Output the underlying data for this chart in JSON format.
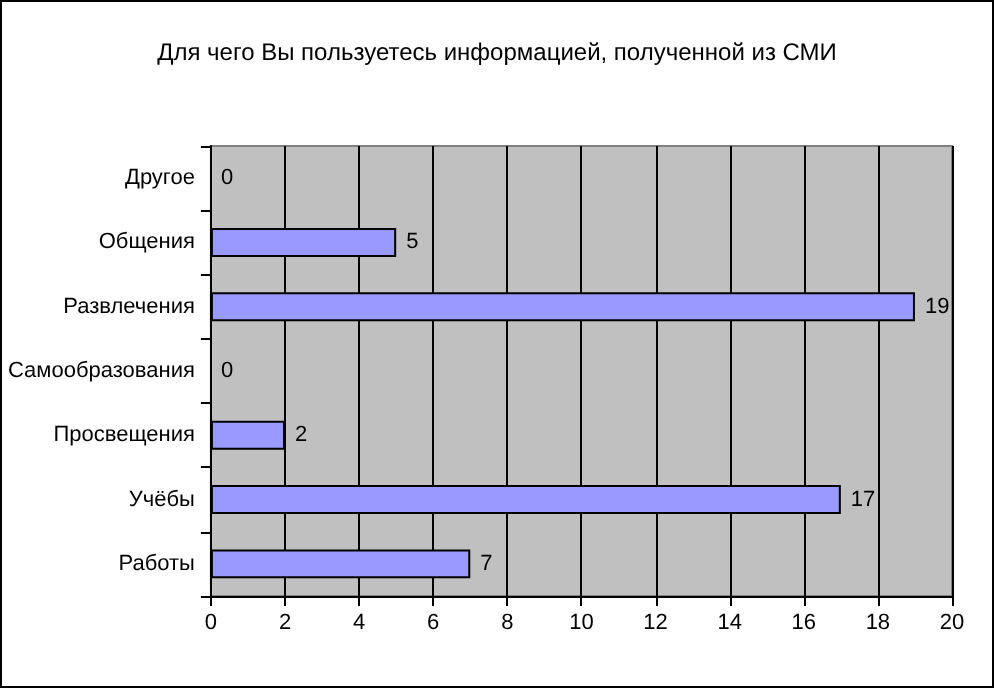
{
  "chart_data": {
    "type": "bar",
    "orientation": "horizontal",
    "title": "Для чего Вы пользуетесь информацией, полученной из СМИ",
    "categories": [
      "Другое",
      "Общения",
      "Развлечения",
      "Самообразования",
      "Просвещения",
      "Учёбы",
      "Работы"
    ],
    "values": [
      0,
      5,
      19,
      0,
      2,
      17,
      7
    ],
    "color": "#9999ff",
    "xlim": [
      0,
      20
    ],
    "xticks": [
      0,
      2,
      4,
      6,
      8,
      10,
      12,
      14,
      16,
      18,
      20
    ],
    "grid": "x",
    "data_labels": true
  }
}
